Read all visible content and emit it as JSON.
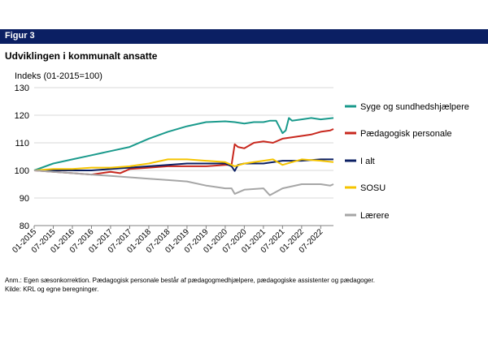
{
  "figure_label": "Figur 3",
  "title": "Udviklingen i kommunalt ansatte",
  "note": "Anm.: Egen sæsonkorrektion. Pædagogisk personale består af pædagogmedhjælpere, pædagogiske assistenter og pædagoger.",
  "source": "Kilde: KRL og egne beregninger.",
  "chart_data": {
    "type": "line",
    "ylabel": "Indeks (01-2015=100)",
    "ylim": [
      80,
      130
    ],
    "yticks": [
      80,
      90,
      100,
      110,
      120,
      130
    ],
    "xlim": [
      "2015-01",
      "2022-11"
    ],
    "xticks": [
      "01-2015",
      "07-2015",
      "01-2016",
      "07-2016",
      "01-2017",
      "07-2017",
      "01-2018",
      "07-2018",
      "01-2019",
      "07-2019",
      "01-2020",
      "07-2020",
      "01-2021",
      "07-2021",
      "01-2022",
      "07-2022"
    ],
    "grid": "horizontal",
    "legend_position": "right",
    "series": [
      {
        "name": "Syge og sundhedshjælpere",
        "color": "#1a9a8c",
        "key": "syge",
        "points": [
          [
            "2015-01",
            100
          ],
          [
            "2015-07",
            102.5
          ],
          [
            "2016-01",
            104
          ],
          [
            "2016-07",
            105.5
          ],
          [
            "2017-01",
            107
          ],
          [
            "2017-07",
            108.5
          ],
          [
            "2018-01",
            111.5
          ],
          [
            "2018-07",
            114
          ],
          [
            "2019-01",
            116
          ],
          [
            "2019-07",
            117.5
          ],
          [
            "2020-01",
            117.8
          ],
          [
            "2020-04",
            117.5
          ],
          [
            "2020-07",
            117
          ],
          [
            "2020-10",
            117.5
          ],
          [
            "2021-01",
            117.5
          ],
          [
            "2021-03",
            118
          ],
          [
            "2021-05",
            118
          ],
          [
            "2021-07",
            113.5
          ],
          [
            "2021-08",
            114.5
          ],
          [
            "2021-09",
            119
          ],
          [
            "2021-10",
            118
          ],
          [
            "2022-01",
            118.5
          ],
          [
            "2022-04",
            119
          ],
          [
            "2022-07",
            118.5
          ],
          [
            "2022-11",
            119
          ]
        ]
      },
      {
        "name": "Pædagogisk personale",
        "color": "#c8281e",
        "key": "paed",
        "points": [
          [
            "2015-01",
            100
          ],
          [
            "2015-07",
            99.5
          ],
          [
            "2016-01",
            99
          ],
          [
            "2016-07",
            98.5
          ],
          [
            "2017-01",
            99.5
          ],
          [
            "2017-04",
            99
          ],
          [
            "2017-07",
            100.5
          ],
          [
            "2018-01",
            101
          ],
          [
            "2018-07",
            101.5
          ],
          [
            "2019-01",
            101.5
          ],
          [
            "2019-07",
            101.5
          ],
          [
            "2020-01",
            102
          ],
          [
            "2020-03",
            102
          ],
          [
            "2020-04",
            109.5
          ],
          [
            "2020-05",
            108.5
          ],
          [
            "2020-07",
            108
          ],
          [
            "2020-10",
            110
          ],
          [
            "2021-01",
            110.5
          ],
          [
            "2021-04",
            110
          ],
          [
            "2021-07",
            111.5
          ],
          [
            "2022-01",
            112.5
          ],
          [
            "2022-04",
            113
          ],
          [
            "2022-07",
            114
          ],
          [
            "2022-10",
            114.5
          ],
          [
            "2022-11",
            115
          ]
        ]
      },
      {
        "name": "I alt",
        "color": "#0b1f63",
        "key": "ialt",
        "points": [
          [
            "2015-01",
            100
          ],
          [
            "2015-07",
            100
          ],
          [
            "2016-01",
            100
          ],
          [
            "2016-07",
            100
          ],
          [
            "2017-01",
            100.5
          ],
          [
            "2017-07",
            101
          ],
          [
            "2018-01",
            101.5
          ],
          [
            "2018-07",
            102
          ],
          [
            "2019-01",
            102.5
          ],
          [
            "2019-07",
            102.5
          ],
          [
            "2020-01",
            102.5
          ],
          [
            "2020-03",
            101.5
          ],
          [
            "2020-04",
            99.8
          ],
          [
            "2020-05",
            102
          ],
          [
            "2020-07",
            102.5
          ],
          [
            "2021-01",
            102.5
          ],
          [
            "2021-07",
            103.5
          ],
          [
            "2022-01",
            103.5
          ],
          [
            "2022-07",
            104
          ],
          [
            "2022-11",
            104
          ]
        ]
      },
      {
        "name": "SOSU",
        "color": "#f5c400",
        "key": "sosu",
        "points": [
          [
            "2015-01",
            100
          ],
          [
            "2015-07",
            100.5
          ],
          [
            "2016-01",
            100.5
          ],
          [
            "2016-07",
            101
          ],
          [
            "2017-01",
            101
          ],
          [
            "2017-07",
            101.5
          ],
          [
            "2018-01",
            102.5
          ],
          [
            "2018-07",
            104
          ],
          [
            "2019-01",
            104
          ],
          [
            "2019-07",
            103.5
          ],
          [
            "2020-01",
            103
          ],
          [
            "2020-04",
            101.5
          ],
          [
            "2020-07",
            102.5
          ],
          [
            "2020-10",
            103
          ],
          [
            "2021-01",
            103.5
          ],
          [
            "2021-04",
            104
          ],
          [
            "2021-07",
            102
          ],
          [
            "2022-01",
            104
          ],
          [
            "2022-07",
            103.5
          ],
          [
            "2022-11",
            103
          ]
        ]
      },
      {
        "name": "Lærere",
        "color": "#a6a6a6",
        "key": "laerere",
        "points": [
          [
            "2015-01",
            100
          ],
          [
            "2015-07",
            99.5
          ],
          [
            "2016-01",
            99
          ],
          [
            "2016-07",
            98.5
          ],
          [
            "2017-01",
            98
          ],
          [
            "2017-07",
            97.5
          ],
          [
            "2018-01",
            97
          ],
          [
            "2018-07",
            96.5
          ],
          [
            "2019-01",
            96
          ],
          [
            "2019-07",
            94.5
          ],
          [
            "2020-01",
            93.5
          ],
          [
            "2020-03",
            93.5
          ],
          [
            "2020-04",
            91.5
          ],
          [
            "2020-07",
            93
          ],
          [
            "2021-01",
            93.5
          ],
          [
            "2021-03",
            91
          ],
          [
            "2021-07",
            93.5
          ],
          [
            "2022-01",
            95
          ],
          [
            "2022-07",
            95
          ],
          [
            "2022-10",
            94.5
          ],
          [
            "2022-11",
            95
          ]
        ]
      }
    ]
  }
}
